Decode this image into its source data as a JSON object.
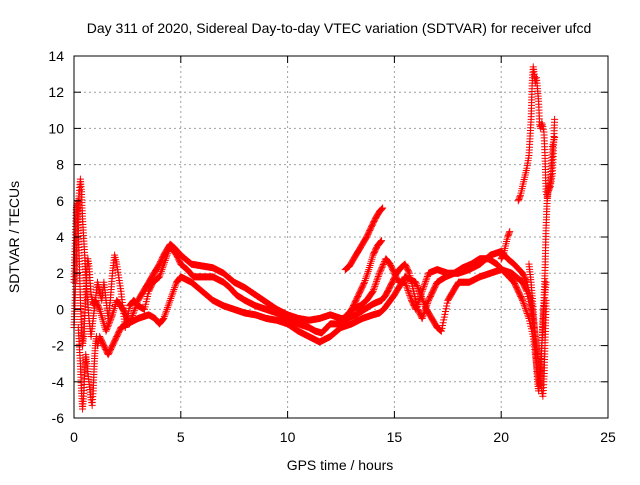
{
  "chart_data": {
    "type": "scatter",
    "title": "Day 311 of 2020, Sidereal Day-to-day VTEC variation (SDTVAR) for receiver ufcd",
    "xlabel": "GPS time / hours",
    "ylabel": "SDTVAR / TECUs",
    "xlim": [
      0,
      25
    ],
    "ylim": [
      -6,
      14
    ],
    "x_ticks": [
      0,
      5,
      10,
      15,
      20,
      25
    ],
    "y_ticks": [
      -6,
      -4,
      -2,
      0,
      2,
      4,
      6,
      8,
      10,
      12,
      14
    ],
    "grid": true,
    "legend": "none",
    "marker": "+",
    "color": "#ff0000",
    "series": [
      {
        "name": "track-main",
        "points": [
          [
            0.0,
            1.5
          ],
          [
            0.05,
            3.5
          ],
          [
            0.1,
            5.5
          ],
          [
            0.15,
            6.0
          ],
          [
            0.2,
            4.5
          ],
          [
            0.25,
            2.5
          ],
          [
            0.3,
            0.5
          ],
          [
            0.35,
            -1.0
          ],
          [
            0.4,
            -2.0
          ],
          [
            0.45,
            -1.5
          ],
          [
            0.5,
            -0.5
          ],
          [
            0.55,
            0.8
          ],
          [
            0.6,
            2.2
          ],
          [
            0.65,
            2.8
          ],
          [
            0.7,
            2.4
          ],
          [
            0.75,
            1.6
          ],
          [
            0.8,
            0.8
          ],
          [
            0.9,
            0.3
          ],
          [
            1.0,
            0.5
          ],
          [
            1.1,
            1.5
          ],
          [
            1.2,
            1.0
          ],
          [
            1.3,
            0.5
          ],
          [
            1.4,
            1.5
          ],
          [
            1.5,
            0.5
          ],
          [
            1.6,
            -0.5
          ],
          [
            1.7,
            0.5
          ],
          [
            1.8,
            2.0
          ],
          [
            1.9,
            3.0
          ],
          [
            2.0,
            2.5
          ],
          [
            2.2,
            1.0
          ],
          [
            2.4,
            -1.0
          ],
          [
            2.5,
            -0.5
          ],
          [
            2.6,
            0.2
          ],
          [
            2.8,
            0.5
          ],
          [
            3.0,
            0.2
          ],
          [
            3.3,
            0.0
          ],
          [
            3.5,
            1.0
          ],
          [
            3.7,
            1.5
          ],
          [
            4.0,
            1.8
          ],
          [
            4.3,
            2.8
          ],
          [
            4.5,
            3.5
          ],
          [
            4.8,
            3.0
          ],
          [
            5.0,
            2.5
          ],
          [
            5.3,
            2.2
          ],
          [
            5.6,
            1.8
          ],
          [
            6.0,
            1.8
          ],
          [
            6.5,
            1.8
          ],
          [
            7.0,
            1.5
          ],
          [
            7.3,
            1.2
          ],
          [
            7.6,
            0.8
          ],
          [
            8.0,
            0.5
          ],
          [
            8.5,
            0.2
          ],
          [
            9.0,
            0.0
          ],
          [
            9.5,
            -0.2
          ],
          [
            10.0,
            -0.5
          ],
          [
            10.5,
            -0.8
          ],
          [
            11.0,
            -1.0
          ],
          [
            11.3,
            -1.2
          ],
          [
            11.6,
            -1.3
          ],
          [
            12.0,
            -0.8
          ],
          [
            12.4,
            -0.8
          ],
          [
            12.8,
            -0.5
          ],
          [
            13.2,
            -0.3
          ],
          [
            13.6,
            0.0
          ],
          [
            14.0,
            0.3
          ],
          [
            14.4,
            0.5
          ],
          [
            14.6,
            0.8
          ],
          [
            14.9,
            1.5
          ],
          [
            15.1,
            2.0
          ],
          [
            15.3,
            2.3
          ],
          [
            15.5,
            2.5
          ],
          [
            15.7,
            2.0
          ],
          [
            15.9,
            1.0
          ],
          [
            16.1,
            0.0
          ],
          [
            16.3,
            -0.5
          ],
          [
            16.6,
            0.5
          ],
          [
            17.0,
            1.5
          ],
          [
            17.4,
            1.8
          ],
          [
            17.8,
            2.0
          ],
          [
            18.2,
            2.3
          ],
          [
            18.6,
            2.5
          ],
          [
            19.0,
            2.8
          ],
          [
            19.4,
            2.8
          ],
          [
            19.8,
            2.5
          ],
          [
            20.2,
            2.0
          ],
          [
            20.6,
            1.5
          ],
          [
            21.0,
            0.5
          ],
          [
            21.3,
            -0.5
          ],
          [
            21.5,
            -1.5
          ],
          [
            21.6,
            -2.5
          ],
          [
            21.7,
            -3.5
          ],
          [
            21.8,
            -4.2
          ],
          [
            21.85,
            -3.5
          ],
          [
            21.9,
            -2.0
          ],
          [
            21.95,
            -0.5
          ],
          [
            22.0,
            0.5
          ],
          [
            22.05,
            2.0
          ],
          [
            22.1,
            4.5
          ],
          [
            22.15,
            6.0
          ],
          [
            22.2,
            6.5
          ],
          [
            22.3,
            6.8
          ],
          [
            22.4,
            7.5
          ],
          [
            22.5,
            10.5
          ]
        ]
      },
      {
        "name": "track-upper",
        "points": [
          [
            0.0,
            -1.0
          ],
          [
            0.05,
            0.5
          ],
          [
            0.1,
            2.5
          ],
          [
            0.15,
            4.5
          ],
          [
            0.2,
            5.8
          ],
          [
            0.3,
            7.2
          ],
          [
            0.35,
            6.5
          ],
          [
            0.4,
            5.0
          ],
          [
            0.5,
            3.0
          ],
          [
            0.6,
            1.0
          ],
          [
            0.7,
            -0.5
          ],
          [
            0.8,
            -1.5
          ],
          [
            0.9,
            -0.5
          ],
          [
            1.0,
            0.5
          ],
          [
            1.2,
            0.0
          ],
          [
            1.5,
            -1.2
          ],
          [
            1.8,
            -0.3
          ],
          [
            2.0,
            0.5
          ],
          [
            2.3,
            0.0
          ],
          [
            2.6,
            -0.8
          ],
          [
            3.0,
            0.5
          ],
          [
            3.5,
            1.5
          ],
          [
            4.0,
            2.5
          ],
          [
            4.2,
            3.0
          ],
          [
            4.5,
            3.6
          ],
          [
            4.7,
            3.4
          ],
          [
            5.0,
            3.0
          ],
          [
            5.5,
            2.5
          ],
          [
            6.0,
            2.4
          ],
          [
            6.5,
            2.3
          ],
          [
            7.0,
            2.0
          ],
          [
            7.5,
            1.5
          ],
          [
            8.0,
            1.2
          ],
          [
            8.5,
            0.8
          ],
          [
            9.0,
            0.4
          ],
          [
            9.5,
            0.0
          ],
          [
            10.0,
            -0.3
          ],
          [
            10.5,
            -0.5
          ],
          [
            11.0,
            -0.6
          ],
          [
            11.5,
            -0.5
          ],
          [
            12.0,
            -0.3
          ],
          [
            12.5,
            -0.5
          ],
          [
            12.8,
            -0.5
          ],
          [
            13.0,
            0.0
          ],
          [
            13.4,
            0.2
          ],
          [
            13.7,
            0.5
          ],
          [
            14.0,
            1.0
          ],
          [
            14.3,
            2.0
          ],
          [
            14.6,
            2.8
          ],
          [
            14.8,
            2.5
          ],
          [
            15.0,
            2.0
          ],
          [
            15.2,
            1.5
          ],
          [
            15.5,
            1.5
          ],
          [
            15.8,
            0.5
          ],
          [
            16.0,
            0.0
          ],
          [
            16.3,
            1.0
          ],
          [
            16.6,
            2.0
          ],
          [
            17.0,
            2.2
          ],
          [
            17.5,
            2.0
          ],
          [
            18.0,
            2.0
          ],
          [
            18.5,
            2.2
          ],
          [
            19.0,
            2.5
          ],
          [
            19.5,
            3.0
          ],
          [
            20.0,
            3.2
          ],
          [
            20.3,
            2.8
          ],
          [
            20.6,
            2.5
          ],
          [
            21.0,
            2.0
          ],
          [
            21.2,
            1.5
          ],
          [
            21.4,
            0.5
          ],
          [
            21.5,
            -0.5
          ],
          [
            21.6,
            -1.5
          ],
          [
            21.7,
            -2.5
          ],
          [
            21.8,
            -3.5
          ],
          [
            21.9,
            -4.5
          ],
          [
            21.95,
            -4.8
          ],
          [
            22.0,
            -4.0
          ],
          [
            22.05,
            -2.0
          ],
          [
            22.1,
            0.5
          ]
        ]
      },
      {
        "name": "track-lower",
        "points": [
          [
            0.2,
            -1.0
          ],
          [
            0.3,
            -3.0
          ],
          [
            0.35,
            -4.5
          ],
          [
            0.4,
            -5.5
          ],
          [
            0.45,
            -4.8
          ],
          [
            0.5,
            -3.5
          ],
          [
            0.55,
            -2.5
          ],
          [
            0.6,
            -3.0
          ],
          [
            0.7,
            -4.0
          ],
          [
            0.8,
            -5.0
          ],
          [
            0.85,
            -5.3
          ],
          [
            0.9,
            -4.5
          ],
          [
            0.95,
            -3.0
          ],
          [
            1.0,
            -2.0
          ],
          [
            1.05,
            -1.5
          ],
          [
            1.1,
            -2.0
          ],
          [
            1.2,
            -1.5
          ],
          [
            1.4,
            -2.0
          ],
          [
            1.6,
            -2.5
          ],
          [
            1.8,
            -2.0
          ],
          [
            2.0,
            -1.5
          ],
          [
            2.2,
            -1.0
          ],
          [
            2.5,
            -0.8
          ],
          [
            3.0,
            -0.5
          ],
          [
            3.5,
            -0.3
          ],
          [
            3.8,
            -0.5
          ],
          [
            4.0,
            -0.8
          ],
          [
            4.2,
            -0.5
          ],
          [
            4.5,
            0.5
          ],
          [
            4.8,
            1.5
          ],
          [
            5.0,
            1.8
          ],
          [
            5.5,
            1.5
          ],
          [
            6.0,
            1.0
          ],
          [
            6.5,
            0.5
          ],
          [
            7.0,
            0.2
          ],
          [
            7.5,
            0.0
          ],
          [
            8.0,
            -0.2
          ],
          [
            8.5,
            -0.3
          ],
          [
            9.0,
            -0.5
          ],
          [
            9.5,
            -0.6
          ],
          [
            10.0,
            -0.8
          ],
          [
            10.5,
            -1.2
          ],
          [
            11.0,
            -1.5
          ],
          [
            11.5,
            -1.8
          ],
          [
            12.0,
            -1.5
          ],
          [
            12.5,
            -1.0
          ],
          [
            13.0,
            -0.8
          ],
          [
            13.5,
            -0.5
          ],
          [
            14.0,
            -0.3
          ],
          [
            14.3,
            -0.2
          ],
          [
            14.5,
            0.0
          ],
          [
            15.0,
            0.8
          ],
          [
            15.5,
            1.8
          ],
          [
            16.0,
            1.5
          ],
          [
            16.5,
            0.0
          ],
          [
            17.0,
            -1.0
          ],
          [
            17.2,
            -1.2
          ],
          [
            17.5,
            0.5
          ],
          [
            18.0,
            1.5
          ],
          [
            18.5,
            1.5
          ],
          [
            19.0,
            1.8
          ],
          [
            19.5,
            2.0
          ],
          [
            20.0,
            2.2
          ],
          [
            20.5,
            2.0
          ],
          [
            21.0,
            1.5
          ],
          [
            21.2,
            1.0
          ],
          [
            21.4,
            0.0
          ],
          [
            21.5,
            -1.0
          ]
        ]
      },
      {
        "name": "track-rising-13",
        "points": [
          [
            12.7,
            2.2
          ],
          [
            12.9,
            2.4
          ],
          [
            13.1,
            2.8
          ],
          [
            13.3,
            3.2
          ],
          [
            13.5,
            3.6
          ],
          [
            13.7,
            4.0
          ],
          [
            13.9,
            4.5
          ],
          [
            14.1,
            5.0
          ],
          [
            14.3,
            5.4
          ],
          [
            14.45,
            5.6
          ]
        ]
      },
      {
        "name": "track-rising-14",
        "points": [
          [
            12.6,
            -0.5
          ],
          [
            12.8,
            -0.3
          ],
          [
            13.0,
            0.0
          ],
          [
            13.2,
            0.5
          ],
          [
            13.4,
            1.0
          ],
          [
            13.6,
            1.5
          ],
          [
            13.8,
            2.2
          ],
          [
            14.0,
            3.0
          ],
          [
            14.2,
            3.5
          ],
          [
            14.4,
            3.8
          ]
        ]
      },
      {
        "name": "track-rising-20",
        "points": [
          [
            20.0,
            2.8
          ],
          [
            20.1,
            3.0
          ],
          [
            20.2,
            3.5
          ],
          [
            20.3,
            4.0
          ],
          [
            20.4,
            4.3
          ]
        ]
      },
      {
        "name": "track-spike-22",
        "points": [
          [
            20.8,
            6.0
          ],
          [
            20.9,
            6.3
          ],
          [
            21.0,
            6.8
          ],
          [
            21.1,
            7.3
          ],
          [
            21.2,
            7.8
          ],
          [
            21.3,
            8.5
          ],
          [
            21.4,
            10.5
          ],
          [
            21.45,
            12.5
          ],
          [
            21.5,
            13.4
          ],
          [
            21.55,
            13.0
          ],
          [
            21.6,
            12.5
          ],
          [
            21.65,
            12.8
          ],
          [
            21.7,
            12.2
          ],
          [
            21.75,
            11.5
          ],
          [
            21.8,
            10.2
          ],
          [
            21.85,
            10.0
          ],
          [
            21.9,
            10.3
          ],
          [
            21.95,
            10.1
          ],
          [
            22.0,
            9.8
          ],
          [
            22.05,
            8.5
          ],
          [
            22.1,
            6.5
          ],
          [
            22.15,
            6.2
          ],
          [
            22.2,
            6.7
          ],
          [
            22.3,
            7.0
          ],
          [
            22.4,
            9.0
          ],
          [
            22.5,
            9.5
          ]
        ]
      },
      {
        "name": "track-dip-22",
        "points": [
          [
            21.3,
            2.5
          ],
          [
            21.4,
            1.5
          ],
          [
            21.5,
            0.0
          ],
          [
            21.55,
            -1.0
          ],
          [
            21.6,
            -2.0
          ],
          [
            21.65,
            -3.0
          ],
          [
            21.7,
            -4.0
          ],
          [
            21.75,
            -4.5
          ],
          [
            21.8,
            -4.0
          ],
          [
            21.85,
            -3.0
          ],
          [
            21.9,
            -2.0
          ],
          [
            21.95,
            -1.0
          ],
          [
            22.0,
            0.0
          ],
          [
            22.05,
            0.8
          ],
          [
            22.1,
            1.5
          ]
        ]
      }
    ]
  }
}
